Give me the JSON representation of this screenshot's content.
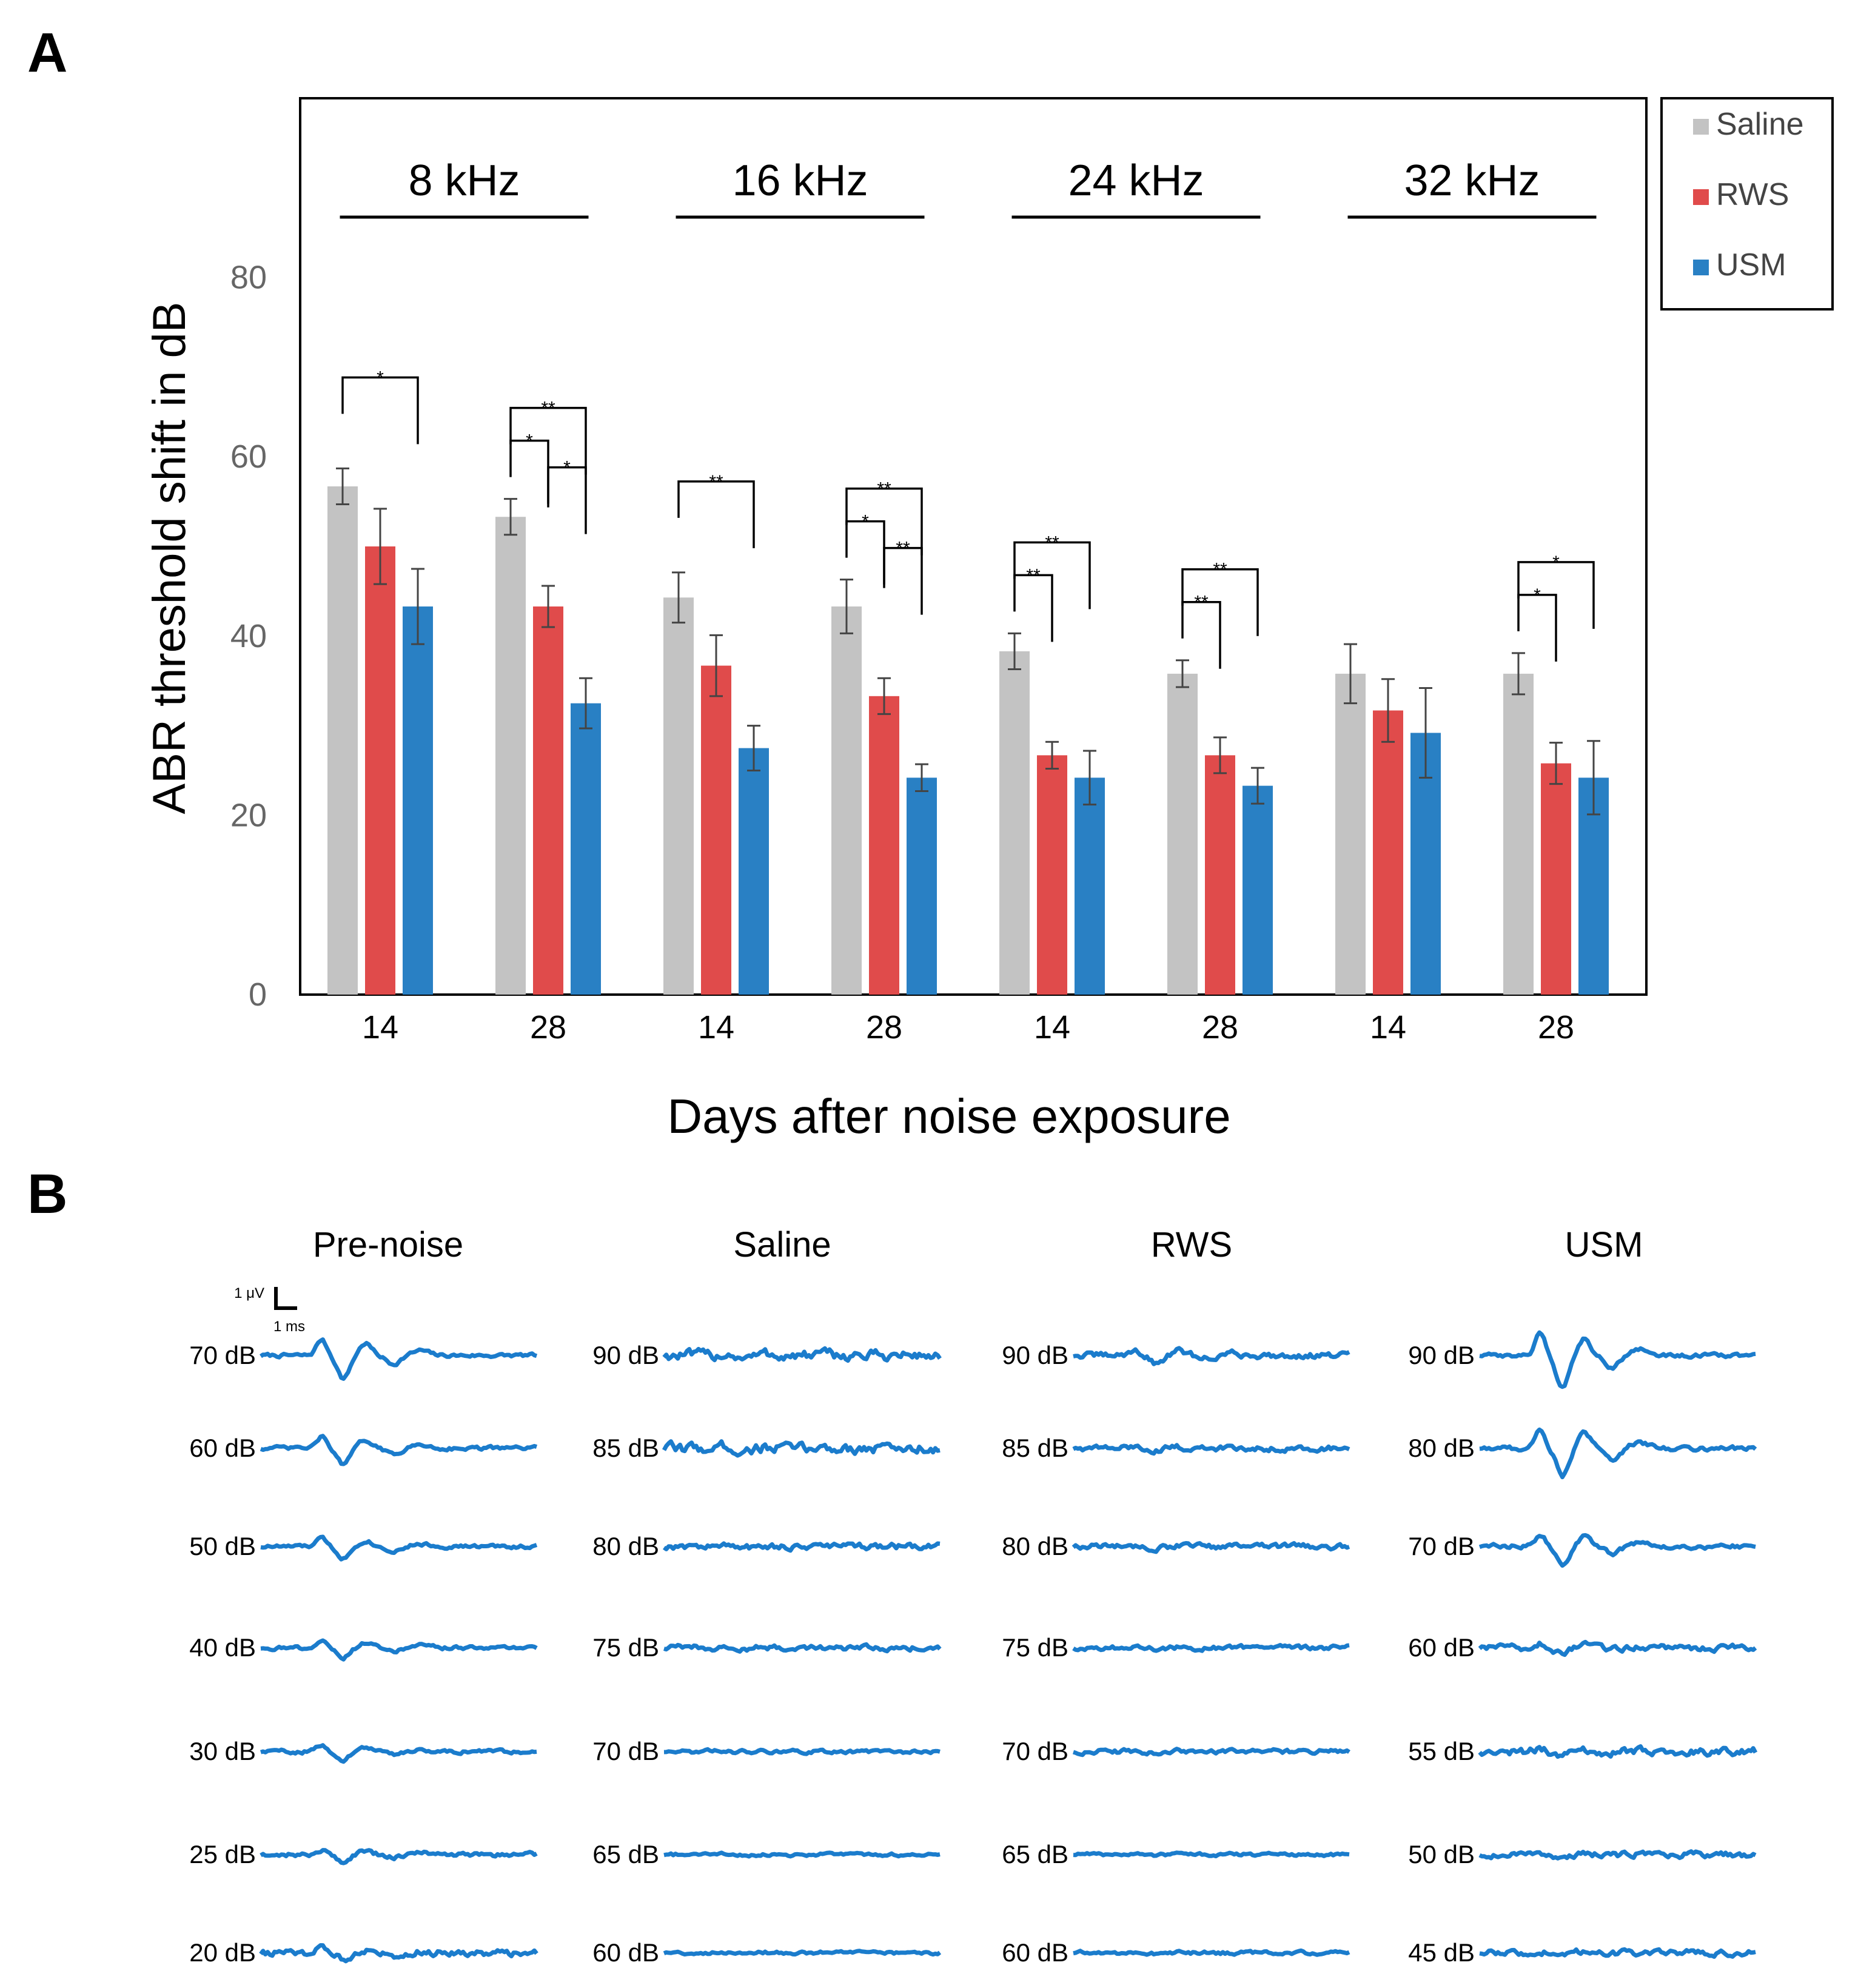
{
  "panel_a": {
    "label": "A",
    "legend": [
      {
        "name": "Saline",
        "color": "#c3c3c3"
      },
      {
        "name": "RWS",
        "color": "#e04b4b"
      },
      {
        "name": "USM",
        "color": "#2980c4"
      }
    ],
    "significance": [
      {
        "group": 0,
        "brackets": [
          {
            "from": 0,
            "to": 2,
            "label": "*"
          }
        ]
      },
      {
        "group": 1,
        "brackets": [
          {
            "from": 0,
            "to": 1,
            "label": "*"
          },
          {
            "from": 0,
            "to": 2,
            "label": "**"
          },
          {
            "from": 1,
            "to": 2,
            "label": "*"
          }
        ]
      },
      {
        "group": 2,
        "brackets": [
          {
            "from": 0,
            "to": 2,
            "label": "**"
          }
        ]
      },
      {
        "group": 3,
        "brackets": [
          {
            "from": 0,
            "to": 1,
            "label": "*"
          },
          {
            "from": 0,
            "to": 2,
            "label": "**"
          },
          {
            "from": 1,
            "to": 2,
            "label": "**"
          }
        ]
      },
      {
        "group": 4,
        "brackets": [
          {
            "from": 0,
            "to": 1,
            "label": "**"
          },
          {
            "from": 0,
            "to": 2,
            "label": "**"
          }
        ]
      },
      {
        "group": 5,
        "brackets": [
          {
            "from": 0,
            "to": 1,
            "label": "**"
          },
          {
            "from": 0,
            "to": 2,
            "label": "**"
          }
        ]
      },
      {
        "group": 7,
        "brackets": [
          {
            "from": 0,
            "to": 1,
            "label": "*"
          },
          {
            "from": 0,
            "to": 2,
            "label": "*"
          }
        ]
      }
    ]
  },
  "chart_data": {
    "type": "bar",
    "title": "",
    "xlabel": "Days after noise exposure",
    "ylabel": "ABR threshold shift in dB",
    "ylim": [
      0,
      100
    ],
    "yticks": [
      0,
      20,
      40,
      60,
      80
    ],
    "frequency_groups": [
      "8 kHz",
      "16 kHz",
      "24 kHz",
      "32 kHz"
    ],
    "categories": [
      "14",
      "28",
      "14",
      "28",
      "14",
      "28",
      "14",
      "28"
    ],
    "series": [
      {
        "name": "Saline",
        "values": [
          56.7,
          53.3,
          44.3,
          43.3,
          38.3,
          35.8,
          35.8,
          35.8
        ],
        "errors": [
          2.0,
          2.0,
          2.8,
          3.0,
          2.0,
          1.5,
          3.3,
          2.3
        ]
      },
      {
        "name": "RWS",
        "values": [
          50.0,
          43.3,
          36.7,
          33.3,
          26.7,
          26.7,
          31.7,
          25.8
        ],
        "errors": [
          4.2,
          2.3,
          3.4,
          2.0,
          1.5,
          2.0,
          3.5,
          2.3
        ]
      },
      {
        "name": "USM",
        "values": [
          43.3,
          32.5,
          27.5,
          24.2,
          24.2,
          23.3,
          29.2,
          24.2
        ],
        "errors": [
          4.2,
          2.8,
          2.5,
          1.5,
          3.0,
          2.0,
          5.0,
          4.1
        ]
      }
    ],
    "legend_position": "top-right"
  },
  "panel_b": {
    "label": "B",
    "scale_bar": {
      "voltage": "1 μV",
      "time": "1 ms"
    },
    "columns": [
      {
        "title": "Pre-noise",
        "levels": [
          "70 dB",
          "60 dB",
          "50 dB",
          "40 dB",
          "30 dB",
          "25 dB",
          "20 dB"
        ]
      },
      {
        "title": "Saline",
        "levels": [
          "90 dB",
          "85 dB",
          "80 dB",
          "75 dB",
          "70 dB",
          "65 dB",
          "60 dB"
        ]
      },
      {
        "title": "RWS",
        "levels": [
          "90 dB",
          "85 dB",
          "80 dB",
          "75 dB",
          "70 dB",
          "65 dB",
          "60 dB"
        ]
      },
      {
        "title": "USM",
        "levels": [
          "90 dB",
          "80 dB",
          "70 dB",
          "60 dB",
          "55 dB",
          "50 dB",
          "45 dB"
        ]
      }
    ],
    "trace_color": "#1b7ccc"
  }
}
